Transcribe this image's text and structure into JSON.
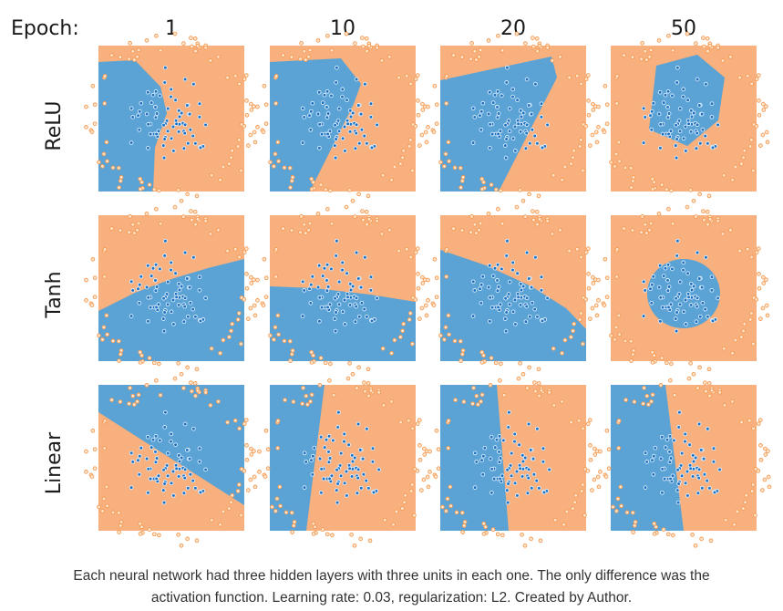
{
  "header": {
    "epoch_label": "Epoch:"
  },
  "columns": [
    "1",
    "10",
    "20",
    "50"
  ],
  "rows": [
    "ReLU",
    "Tanh",
    "Linear"
  ],
  "caption": {
    "line1": "Each neural network had three hidden layers with three units in each one. The only difference was the",
    "line2": "activation function. Learning rate: 0.03, regularization: L2. Created by Author."
  },
  "colors": {
    "orange_region": "#f7b07e",
    "blue_region": "#5ba3d4",
    "orange_point": "#f49a52",
    "blue_point": "#1f6fbf"
  }
}
